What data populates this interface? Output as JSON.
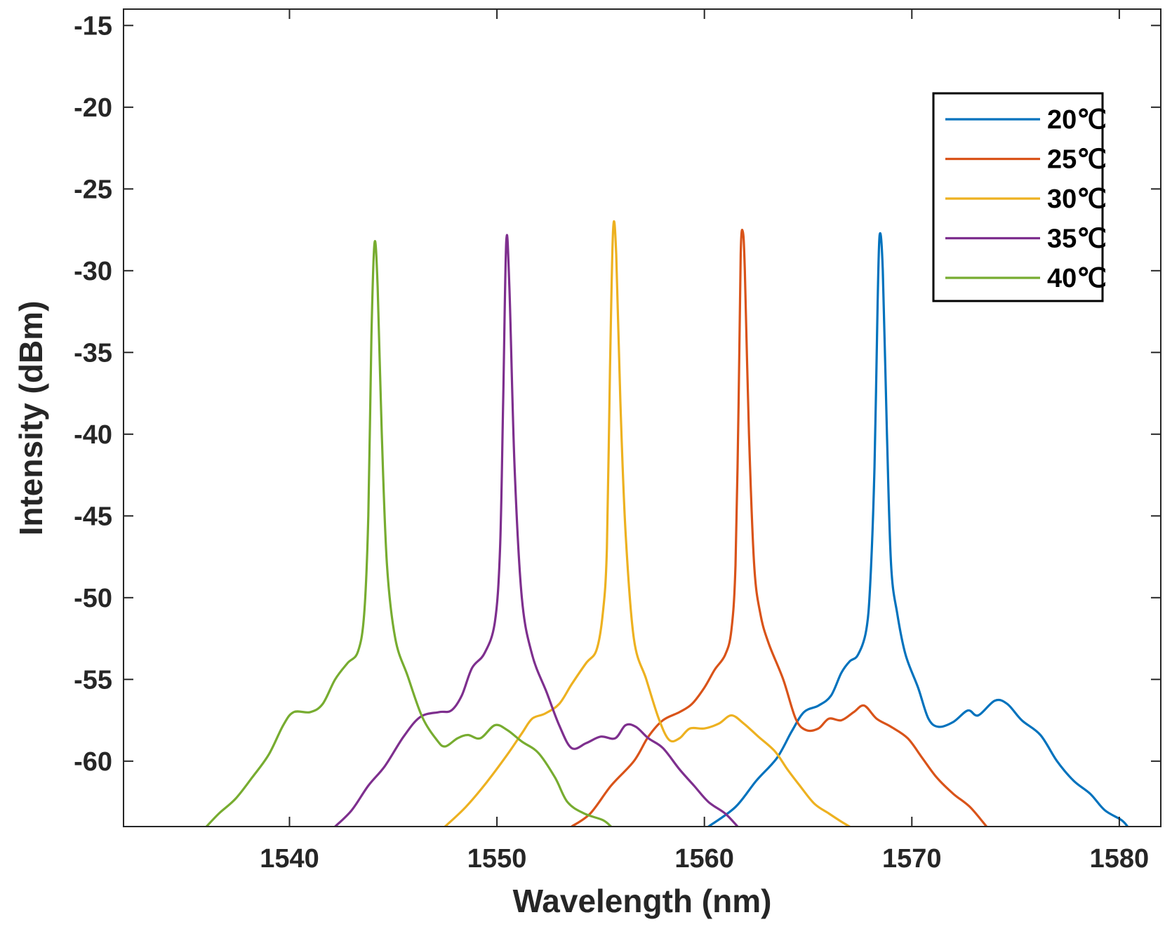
{
  "chart_data": {
    "type": "line",
    "title": "",
    "xlabel": "Wavelength (nm)",
    "ylabel": "Intensity (dBm)",
    "xlim": [
      1532,
      1582
    ],
    "ylim": [
      -64,
      -14
    ],
    "xticks": [
      1540,
      1550,
      1560,
      1570,
      1580
    ],
    "yticks": [
      -15,
      -20,
      -25,
      -30,
      -35,
      -40,
      -45,
      -50,
      -55,
      -60
    ],
    "grid": false,
    "legend_position": "top-right",
    "series": [
      {
        "name": "20℃",
        "color": "#0072BD",
        "points": [
          [
            1560.2,
            -64
          ],
          [
            1561.5,
            -62.8
          ],
          [
            1562.5,
            -61.2
          ],
          [
            1563.5,
            -59.8
          ],
          [
            1564.2,
            -58.2
          ],
          [
            1564.8,
            -57
          ],
          [
            1565.5,
            -56.6
          ],
          [
            1566.1,
            -56
          ],
          [
            1566.6,
            -54.6
          ],
          [
            1567.0,
            -53.9
          ],
          [
            1567.4,
            -53.5
          ],
          [
            1567.8,
            -52
          ],
          [
            1568.0,
            -49
          ],
          [
            1568.2,
            -42
          ],
          [
            1568.35,
            -32
          ],
          [
            1568.45,
            -27.8
          ],
          [
            1568.6,
            -30
          ],
          [
            1568.8,
            -40
          ],
          [
            1569.0,
            -48
          ],
          [
            1569.3,
            -51
          ],
          [
            1569.7,
            -53.5
          ],
          [
            1570.3,
            -55.5
          ],
          [
            1570.8,
            -57.4
          ],
          [
            1571.3,
            -57.9
          ],
          [
            1572.0,
            -57.6
          ],
          [
            1572.7,
            -56.9
          ],
          [
            1573.2,
            -57.2
          ],
          [
            1574.0,
            -56.3
          ],
          [
            1574.6,
            -56.5
          ],
          [
            1575.3,
            -57.5
          ],
          [
            1576.2,
            -58.4
          ],
          [
            1577.0,
            -60
          ],
          [
            1577.8,
            -61.2
          ],
          [
            1578.6,
            -62
          ],
          [
            1579.3,
            -63
          ],
          [
            1580.1,
            -63.6
          ],
          [
            1580.4,
            -64
          ]
        ]
      },
      {
        "name": "25℃",
        "color": "#D95319",
        "points": [
          [
            1553.6,
            -64
          ],
          [
            1554.5,
            -63.2
          ],
          [
            1555.5,
            -61.5
          ],
          [
            1556.6,
            -60
          ],
          [
            1557.3,
            -58.5
          ],
          [
            1558.0,
            -57.5
          ],
          [
            1558.8,
            -57
          ],
          [
            1559.4,
            -56.5
          ],
          [
            1560.0,
            -55.5
          ],
          [
            1560.5,
            -54.4
          ],
          [
            1561.0,
            -53.5
          ],
          [
            1561.3,
            -52
          ],
          [
            1561.5,
            -48
          ],
          [
            1561.65,
            -38
          ],
          [
            1561.75,
            -29
          ],
          [
            1561.85,
            -27.6
          ],
          [
            1561.95,
            -30
          ],
          [
            1562.15,
            -40
          ],
          [
            1562.4,
            -48
          ],
          [
            1562.7,
            -51
          ],
          [
            1563.1,
            -52.8
          ],
          [
            1563.8,
            -55
          ],
          [
            1564.4,
            -57.4
          ],
          [
            1564.9,
            -58.1
          ],
          [
            1565.5,
            -58
          ],
          [
            1566.0,
            -57.4
          ],
          [
            1566.6,
            -57.5
          ],
          [
            1567.2,
            -57
          ],
          [
            1567.7,
            -56.6
          ],
          [
            1568.3,
            -57.4
          ],
          [
            1569.0,
            -57.9
          ],
          [
            1569.8,
            -58.6
          ],
          [
            1570.5,
            -59.8
          ],
          [
            1571.2,
            -61
          ],
          [
            1572.0,
            -62
          ],
          [
            1572.8,
            -62.8
          ],
          [
            1573.6,
            -64
          ]
        ]
      },
      {
        "name": "30℃",
        "color": "#EDB120",
        "points": [
          [
            1547.5,
            -64
          ],
          [
            1548.5,
            -62.8
          ],
          [
            1549.5,
            -61.3
          ],
          [
            1550.5,
            -59.6
          ],
          [
            1551.2,
            -58.3
          ],
          [
            1551.7,
            -57.4
          ],
          [
            1552.3,
            -57.1
          ],
          [
            1553.0,
            -56.5
          ],
          [
            1553.6,
            -55.3
          ],
          [
            1554.3,
            -54
          ],
          [
            1554.8,
            -53.2
          ],
          [
            1555.1,
            -51
          ],
          [
            1555.3,
            -47
          ],
          [
            1555.45,
            -36
          ],
          [
            1555.6,
            -27.5
          ],
          [
            1555.75,
            -29
          ],
          [
            1555.95,
            -38
          ],
          [
            1556.2,
            -46
          ],
          [
            1556.6,
            -52.5
          ],
          [
            1557.2,
            -55
          ],
          [
            1557.8,
            -57.4
          ],
          [
            1558.3,
            -58.7
          ],
          [
            1558.8,
            -58.6
          ],
          [
            1559.3,
            -58
          ],
          [
            1560.0,
            -58
          ],
          [
            1560.7,
            -57.7
          ],
          [
            1561.3,
            -57.2
          ],
          [
            1561.9,
            -57.7
          ],
          [
            1562.6,
            -58.5
          ],
          [
            1563.4,
            -59.4
          ],
          [
            1564.0,
            -60.5
          ],
          [
            1564.6,
            -61.5
          ],
          [
            1565.3,
            -62.6
          ],
          [
            1566.0,
            -63.2
          ],
          [
            1566.6,
            -63.7
          ],
          [
            1567.0,
            -64
          ]
        ]
      },
      {
        "name": "35℃",
        "color": "#7E2F8E",
        "points": [
          [
            1542.2,
            -64
          ],
          [
            1543.0,
            -63
          ],
          [
            1543.8,
            -61.5
          ],
          [
            1544.6,
            -60.3
          ],
          [
            1545.5,
            -58.5
          ],
          [
            1546.3,
            -57.3
          ],
          [
            1547.2,
            -57
          ],
          [
            1547.8,
            -56.9
          ],
          [
            1548.3,
            -56
          ],
          [
            1548.8,
            -54.3
          ],
          [
            1549.4,
            -53.4
          ],
          [
            1549.9,
            -51.5
          ],
          [
            1550.15,
            -47
          ],
          [
            1550.3,
            -38
          ],
          [
            1550.45,
            -28.2
          ],
          [
            1550.6,
            -31
          ],
          [
            1550.85,
            -42
          ],
          [
            1551.2,
            -50
          ],
          [
            1551.7,
            -53.5
          ],
          [
            1552.4,
            -55.8
          ],
          [
            1553.0,
            -57.8
          ],
          [
            1553.6,
            -59.2
          ],
          [
            1554.3,
            -58.9
          ],
          [
            1555.0,
            -58.5
          ],
          [
            1555.7,
            -58.6
          ],
          [
            1556.2,
            -57.8
          ],
          [
            1556.7,
            -57.9
          ],
          [
            1557.3,
            -58.6
          ],
          [
            1558.0,
            -59.2
          ],
          [
            1558.8,
            -60.5
          ],
          [
            1559.5,
            -61.5
          ],
          [
            1560.2,
            -62.5
          ],
          [
            1561.0,
            -63.2
          ],
          [
            1561.6,
            -64
          ]
        ]
      },
      {
        "name": "40℃",
        "color": "#77AC30",
        "points": [
          [
            1536.0,
            -64
          ],
          [
            1536.6,
            -63.2
          ],
          [
            1537.4,
            -62.3
          ],
          [
            1538.2,
            -61
          ],
          [
            1539.0,
            -59.6
          ],
          [
            1539.7,
            -57.8
          ],
          [
            1540.2,
            -57
          ],
          [
            1541.0,
            -57
          ],
          [
            1541.6,
            -56.5
          ],
          [
            1542.2,
            -55
          ],
          [
            1542.8,
            -54
          ],
          [
            1543.3,
            -53.3
          ],
          [
            1543.6,
            -51
          ],
          [
            1543.8,
            -45
          ],
          [
            1543.95,
            -34
          ],
          [
            1544.1,
            -28.3
          ],
          [
            1544.25,
            -31
          ],
          [
            1544.45,
            -40
          ],
          [
            1544.7,
            -48
          ],
          [
            1545.1,
            -52.5
          ],
          [
            1545.7,
            -54.8
          ],
          [
            1546.4,
            -57.3
          ],
          [
            1547.1,
            -58.7
          ],
          [
            1547.5,
            -59.1
          ],
          [
            1548.1,
            -58.6
          ],
          [
            1548.6,
            -58.4
          ],
          [
            1549.2,
            -58.6
          ],
          [
            1549.9,
            -57.8
          ],
          [
            1550.5,
            -58.1
          ],
          [
            1551.2,
            -58.8
          ],
          [
            1552.0,
            -59.5
          ],
          [
            1552.8,
            -61
          ],
          [
            1553.4,
            -62.5
          ],
          [
            1554.2,
            -63.2
          ],
          [
            1555.1,
            -63.6
          ],
          [
            1555.5,
            -64
          ]
        ]
      }
    ]
  }
}
